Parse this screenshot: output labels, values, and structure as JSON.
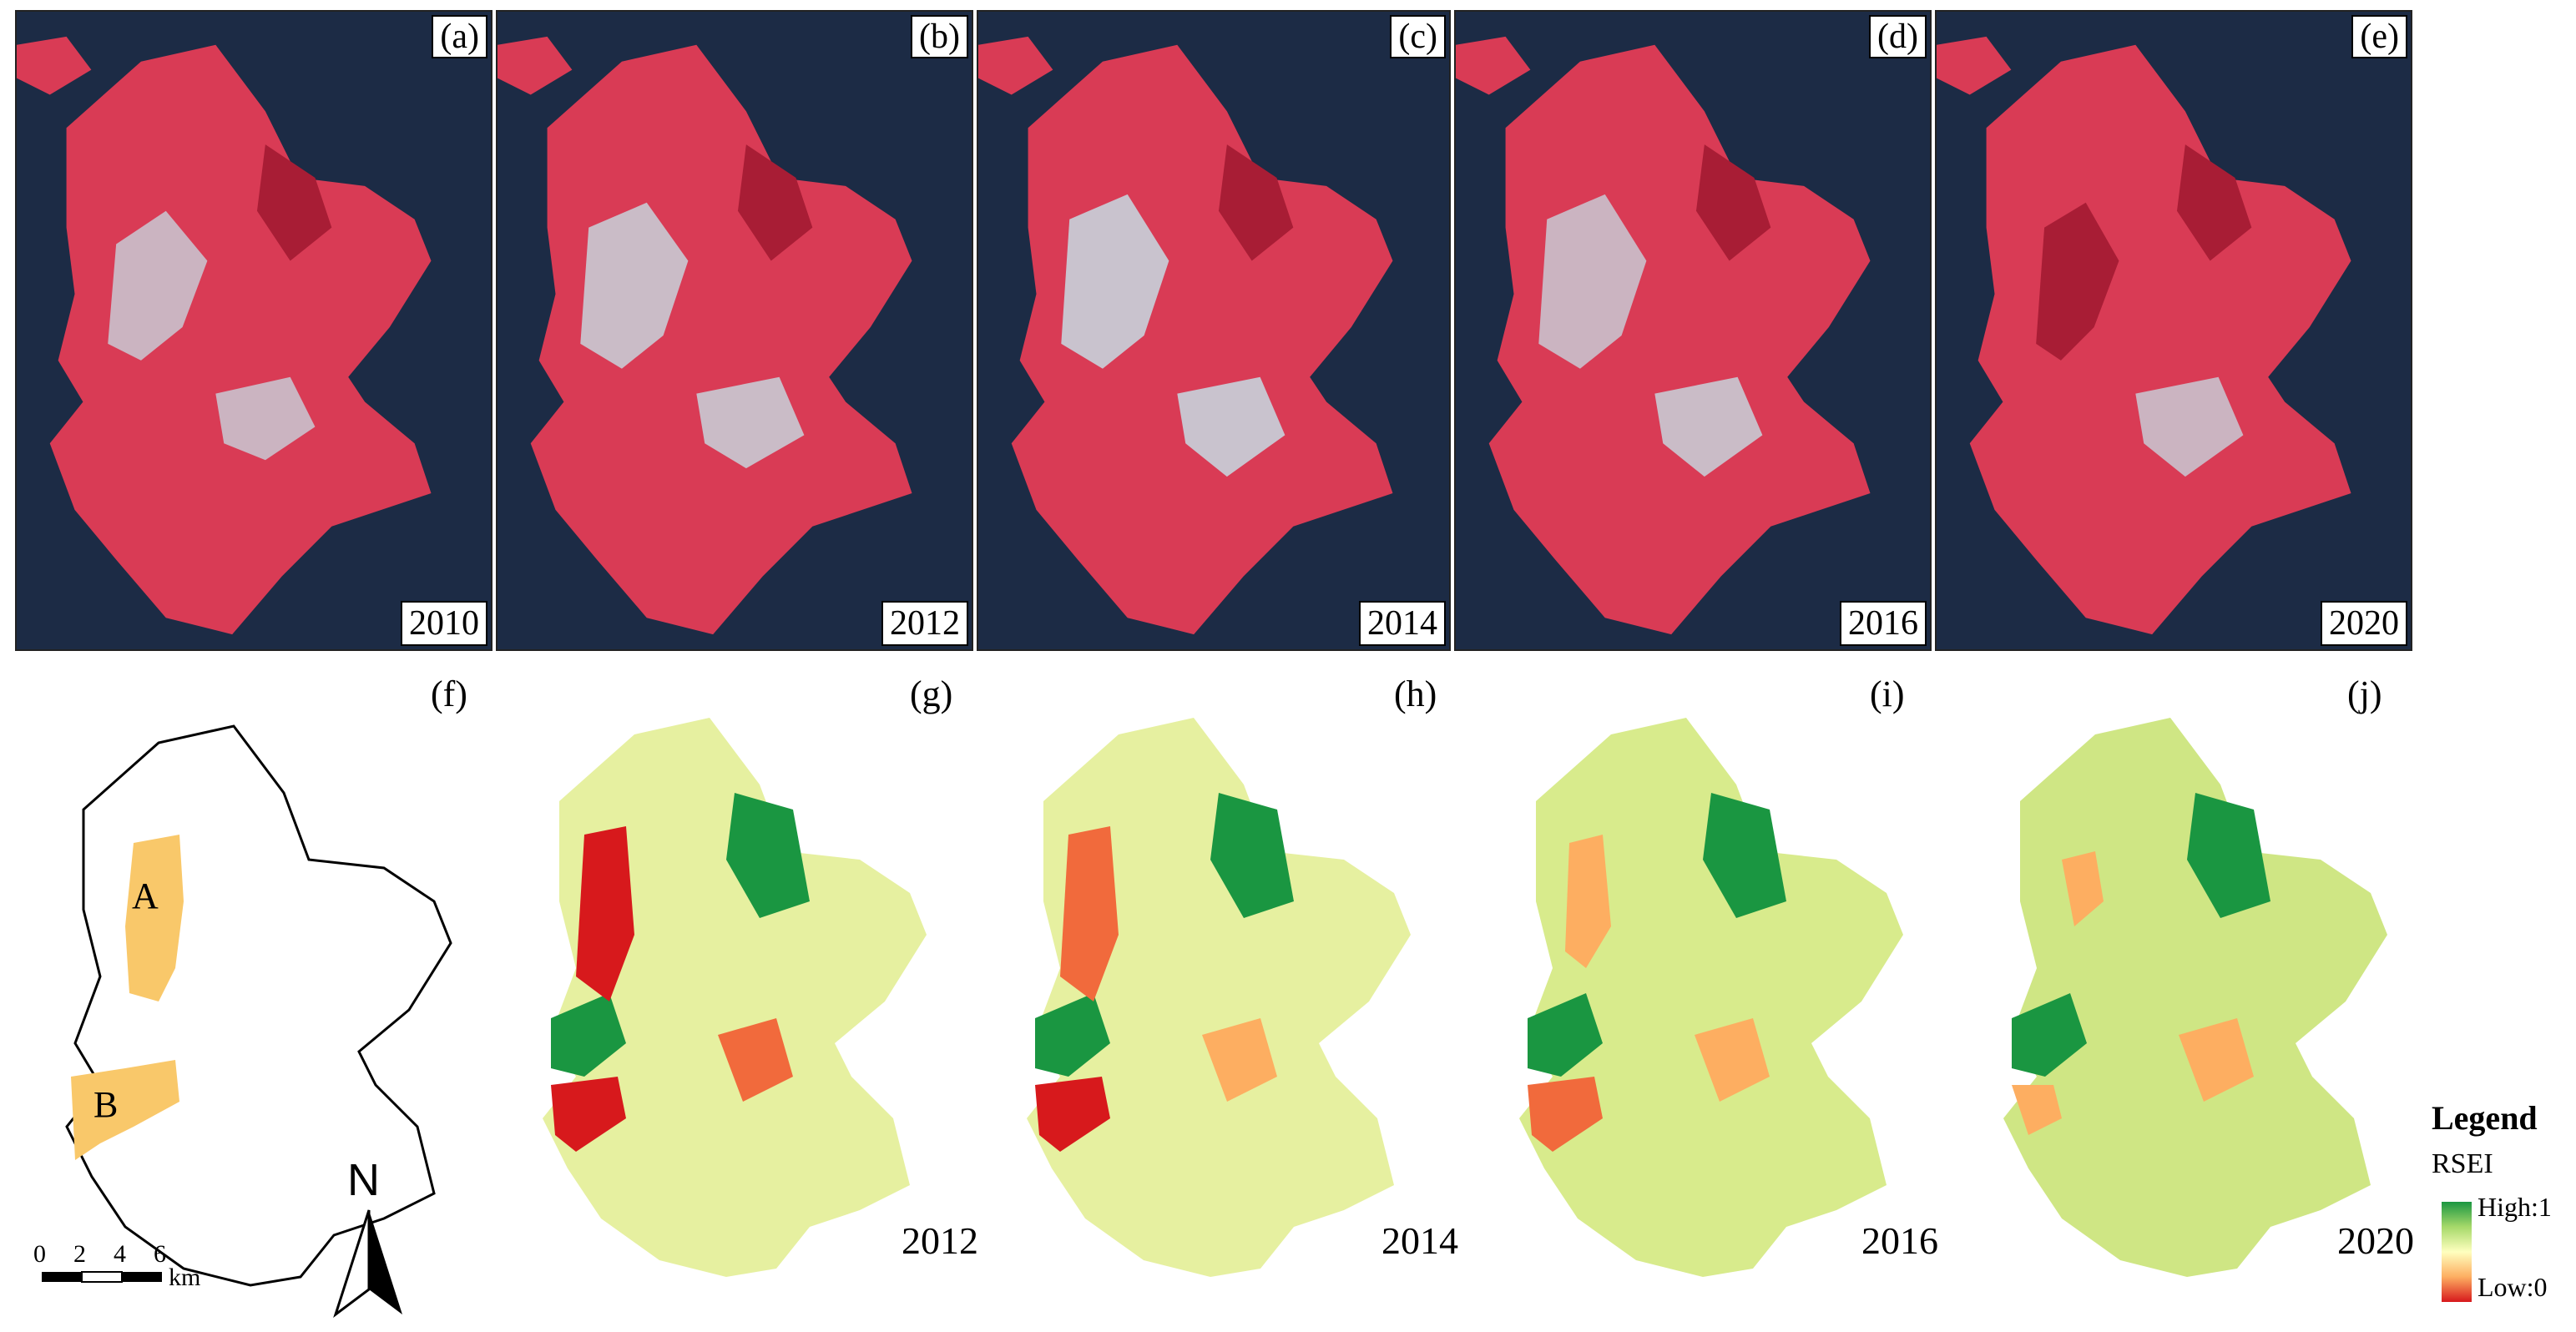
{
  "satellite_panels": [
    {
      "tag": "(a)",
      "year": "2010"
    },
    {
      "tag": "(b)",
      "year": "2012"
    },
    {
      "tag": "(c)",
      "year": "2014"
    },
    {
      "tag": "(d)",
      "year": "2016"
    },
    {
      "tag": "(e)",
      "year": "2020"
    }
  ],
  "rsei_panels": [
    {
      "tag": "(g)",
      "year": "2012"
    },
    {
      "tag": "(h)",
      "year": "2014"
    },
    {
      "tag": "(i)",
      "year": "2016"
    },
    {
      "tag": "(j)",
      "year": "2020"
    }
  ],
  "outline_panel": {
    "tag": "(f)",
    "area_a": "A",
    "area_b": "B"
  },
  "scale_bar": {
    "ticks": [
      "0",
      "2",
      "4",
      "6"
    ],
    "unit": "km"
  },
  "north_label": "N",
  "legend": {
    "title": "Legend",
    "subtitle": "RSEI",
    "high": "High:1",
    "low": "Low:0"
  },
  "colors": {
    "ocean": "#1c2b45",
    "land": "#d93b55",
    "urban": "#c7d3dc",
    "rsei_high": "#1a9641",
    "rsei_mid": "#ffffbf",
    "rsei_low": "#d7191c",
    "highlight": "#f9c86a"
  }
}
